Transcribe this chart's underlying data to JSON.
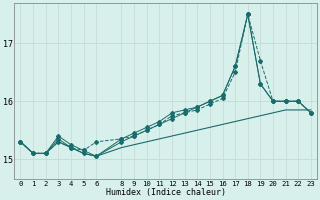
{
  "xlabel": "Humidex (Indice chaleur)",
  "background_color": "#d8f0ec",
  "grid_color_h": "#e8c8c8",
  "grid_color_v": "#c8dcd8",
  "line_color": "#1a6b6b",
  "ylim": [
    14.65,
    17.7
  ],
  "yticks": [
    15,
    16,
    17
  ],
  "hours": [
    0,
    1,
    2,
    3,
    4,
    5,
    6,
    8,
    9,
    10,
    11,
    12,
    13,
    14,
    15,
    16,
    17,
    18,
    19,
    20,
    21,
    22,
    23
  ],
  "series1_flat": [
    15.3,
    15.1,
    15.1,
    15.3,
    15.2,
    15.1,
    15.05,
    15.2,
    15.25,
    15.3,
    15.35,
    15.4,
    15.45,
    15.5,
    15.55,
    15.6,
    15.65,
    15.7,
    15.75,
    15.8,
    15.85,
    15.85,
    15.85
  ],
  "series2_dashed": [
    15.3,
    15.1,
    15.1,
    15.3,
    15.2,
    15.15,
    15.3,
    15.35,
    15.4,
    15.5,
    15.6,
    15.75,
    15.8,
    15.85,
    15.95,
    16.05,
    16.5,
    17.5,
    16.7,
    16.0,
    16.0,
    16.0,
    15.8
  ],
  "series3_solid_markers": [
    15.3,
    15.1,
    15.1,
    15.35,
    15.2,
    15.1,
    15.05,
    15.3,
    15.4,
    15.5,
    15.6,
    15.7,
    15.8,
    15.9,
    16.0,
    16.1,
    16.6,
    17.5,
    16.3,
    16.0,
    16.0,
    16.0,
    15.8
  ],
  "series4_solid_markers2": [
    15.3,
    15.1,
    15.1,
    15.4,
    15.25,
    15.15,
    15.05,
    15.35,
    15.45,
    15.55,
    15.65,
    15.8,
    15.85,
    15.9,
    16.0,
    16.1,
    16.6,
    17.5,
    16.3,
    16.0,
    16.0,
    16.0,
    15.8
  ]
}
